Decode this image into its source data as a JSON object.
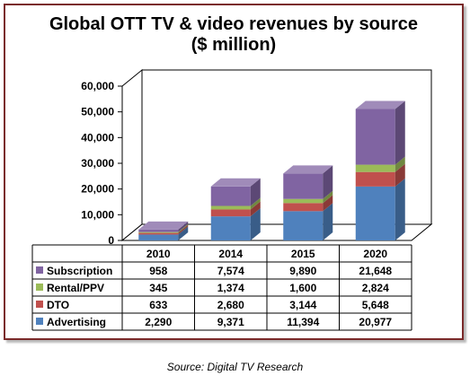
{
  "chart_data": {
    "type": "bar",
    "stacked": true,
    "style": "3d",
    "title": "Global OTT TV & video revenues by source",
    "subtitle": "($ million)",
    "categories": [
      "2010",
      "2014",
      "2015",
      "2020"
    ],
    "ylim": [
      0,
      60000
    ],
    "yticks": [
      "0",
      "10,000",
      "20,000",
      "30,000",
      "40,000",
      "50,000",
      "60,000"
    ],
    "grid": false,
    "series": [
      {
        "name": "Advertising",
        "color": "#4f81bd",
        "values": [
          2290,
          9371,
          11394,
          20977
        ],
        "labels": [
          "2,290",
          "9,371",
          "11,394",
          "20,977"
        ]
      },
      {
        "name": "DTO",
        "color": "#c0504d",
        "values": [
          633,
          2680,
          3144,
          5648
        ],
        "labels": [
          "633",
          "2,680",
          "3,144",
          "5,648"
        ]
      },
      {
        "name": "Rental/PPV",
        "color": "#9bbb59",
        "values": [
          345,
          1374,
          1600,
          2824
        ],
        "labels": [
          "345",
          "1,374",
          "1,600",
          "2,824"
        ]
      },
      {
        "name": "Subscription",
        "color": "#8064a2",
        "values": [
          958,
          7574,
          9890,
          21648
        ],
        "labels": [
          "958",
          "7,574",
          "9,890",
          "21,648"
        ]
      }
    ],
    "table_row_order": [
      "Subscription",
      "Rental/PPV",
      "DTO",
      "Advertising"
    ]
  },
  "source_text": "Source: Digital TV Research"
}
